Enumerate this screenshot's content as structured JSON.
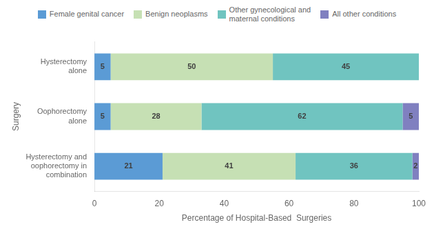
{
  "chart_data": {
    "type": "bar",
    "orientation": "horizontal",
    "stacked": true,
    "data_labels": true,
    "categories": [
      "Hysterectomy\nalone",
      "Oophorectomy\nalone",
      "Hysterectomy and\noophorectomy in\ncombination"
    ],
    "series": [
      {
        "name": "Female genital cancer",
        "color": "#5B9BD5",
        "values": [
          5,
          5,
          21
        ]
      },
      {
        "name": "Benign neoplasms",
        "color": "#C6E0B4",
        "values": [
          50,
          28,
          41
        ]
      },
      {
        "name": "Other gynecological and\nmaternal conditions",
        "color": "#70C4C0",
        "values": [
          45,
          62,
          36
        ]
      },
      {
        "name": "All other conditions",
        "color": "#8080C0",
        "values": [
          0,
          5,
          2
        ]
      }
    ],
    "xlabel": "Percentage of Hospital-Based  Surgeries",
    "ylabel": "Surgery",
    "xlim": [
      0,
      100
    ],
    "xticks": [
      0,
      20,
      40,
      60,
      80,
      100
    ],
    "legend": "top",
    "grid": false
  }
}
